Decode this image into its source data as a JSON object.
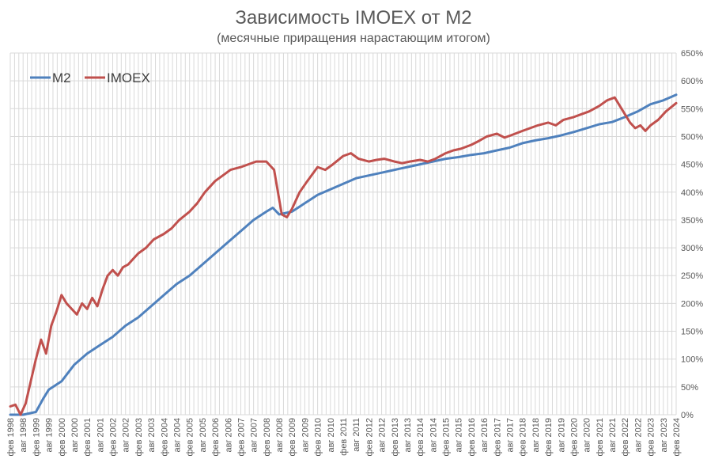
{
  "chart_data": {
    "type": "line",
    "title": "Зависимость IMOEX от M2",
    "subtitle": "(месячные приращения нарастающим итогом)",
    "xlabel": "",
    "ylabel": "",
    "ylim": [
      0,
      650
    ],
    "yticks": [
      "0%",
      "50%",
      "100%",
      "150%",
      "200%",
      "250%",
      "300%",
      "350%",
      "400%",
      "450%",
      "500%",
      "550%",
      "600%",
      "650%"
    ],
    "xlim": [
      1998.0,
      2024.0
    ],
    "xticks": [
      "фев 1998",
      "авг 1998",
      "фев 1999",
      "авг 1999",
      "фев 2000",
      "авг 2000",
      "фев 2001",
      "авг 2001",
      "фев 2002",
      "авг 2002",
      "фев 2003",
      "авг 2003",
      "фев 2004",
      "авг 2004",
      "фев 2005",
      "авг 2005",
      "фев 2006",
      "авг 2006",
      "фев 2007",
      "авг 2007",
      "фев 2008",
      "авг 2008",
      "фев 2009",
      "авг 2009",
      "фев 2010",
      "авг 2010",
      "фев 2011",
      "авг 2011",
      "фев 2012",
      "авг 2012",
      "фев 2013",
      "авг 2013",
      "фев 2014",
      "авг 2014",
      "фев 2015",
      "авг 2015",
      "фев 2016",
      "авг 2016",
      "фев 2017",
      "авг 2017",
      "фев 2018",
      "авг 2018",
      "фев 2019",
      "авг 2019",
      "фев 2020",
      "авг 2020",
      "фев 2021",
      "авг 2021",
      "фев 2022",
      "авг 2022",
      "фев 2023",
      "авг 2023",
      "фев 2024"
    ],
    "grid": true,
    "legend": "top-left",
    "series": [
      {
        "name": "M2",
        "color": "#4f81bd",
        "x": [
          1998.0,
          1998.5,
          1999.0,
          1999.3,
          1999.5,
          2000.0,
          2000.5,
          2001.0,
          2001.5,
          2002.0,
          2002.5,
          2003.0,
          2003.5,
          2004.0,
          2004.5,
          2005.0,
          2005.5,
          2006.0,
          2006.5,
          2007.0,
          2007.5,
          2008.0,
          2008.25,
          2008.5,
          2009.0,
          2009.5,
          2010.0,
          2010.5,
          2011.0,
          2011.5,
          2012.0,
          2012.5,
          2013.0,
          2013.5,
          2014.0,
          2014.5,
          2015.0,
          2015.5,
          2016.0,
          2016.5,
          2017.0,
          2017.5,
          2018.0,
          2018.5,
          2019.0,
          2019.5,
          2020.0,
          2020.5,
          2021.0,
          2021.5,
          2022.0,
          2022.5,
          2023.0,
          2023.5,
          2024.0
        ],
        "values": [
          -8,
          -5,
          5,
          30,
          45,
          60,
          90,
          110,
          125,
          140,
          160,
          175,
          195,
          215,
          235,
          250,
          270,
          290,
          310,
          330,
          350,
          365,
          372,
          360,
          365,
          380,
          395,
          405,
          415,
          425,
          430,
          435,
          440,
          445,
          450,
          455,
          460,
          463,
          467,
          470,
          475,
          480,
          488,
          493,
          497,
          502,
          508,
          515,
          522,
          526,
          535,
          545,
          558,
          565,
          575
        ]
      },
      {
        "name": "IMOEX",
        "color": "#c0504d",
        "x": [
          1998.0,
          1998.2,
          1998.4,
          1998.6,
          1998.8,
          1999.0,
          1999.2,
          1999.4,
          1999.6,
          1999.8,
          2000.0,
          2000.2,
          2000.4,
          2000.6,
          2000.8,
          2001.0,
          2001.2,
          2001.4,
          2001.6,
          2001.8,
          2002.0,
          2002.2,
          2002.4,
          2002.6,
          2002.8,
          2003.0,
          2003.3,
          2003.6,
          2004.0,
          2004.3,
          2004.6,
          2005.0,
          2005.3,
          2005.6,
          2006.0,
          2006.3,
          2006.6,
          2007.0,
          2007.3,
          2007.6,
          2008.0,
          2008.3,
          2008.6,
          2008.8,
          2009.0,
          2009.3,
          2009.6,
          2010.0,
          2010.3,
          2010.6,
          2011.0,
          2011.3,
          2011.6,
          2012.0,
          2012.3,
          2012.6,
          2013.0,
          2013.3,
          2013.6,
          2014.0,
          2014.3,
          2014.6,
          2015.0,
          2015.3,
          2015.6,
          2016.0,
          2016.3,
          2016.6,
          2017.0,
          2017.3,
          2017.6,
          2018.0,
          2018.3,
          2018.6,
          2019.0,
          2019.3,
          2019.6,
          2020.0,
          2020.3,
          2020.6,
          2021.0,
          2021.3,
          2021.6,
          2022.0,
          2022.2,
          2022.4,
          2022.6,
          2022.8,
          2023.0,
          2023.3,
          2023.6,
          2024.0
        ],
        "values": [
          15,
          18,
          0,
          20,
          60,
          100,
          135,
          110,
          160,
          185,
          215,
          200,
          190,
          180,
          200,
          190,
          210,
          195,
          225,
          250,
          260,
          250,
          265,
          270,
          280,
          290,
          300,
          315,
          325,
          335,
          350,
          365,
          380,
          400,
          420,
          430,
          440,
          445,
          450,
          455,
          455,
          440,
          360,
          355,
          370,
          400,
          420,
          445,
          440,
          450,
          465,
          470,
          460,
          455,
          458,
          460,
          455,
          452,
          455,
          458,
          455,
          460,
          470,
          475,
          478,
          485,
          492,
          500,
          505,
          498,
          503,
          510,
          515,
          520,
          525,
          520,
          530,
          535,
          540,
          545,
          555,
          565,
          570,
          540,
          525,
          515,
          520,
          510,
          520,
          530,
          545,
          560
        ]
      }
    ]
  }
}
